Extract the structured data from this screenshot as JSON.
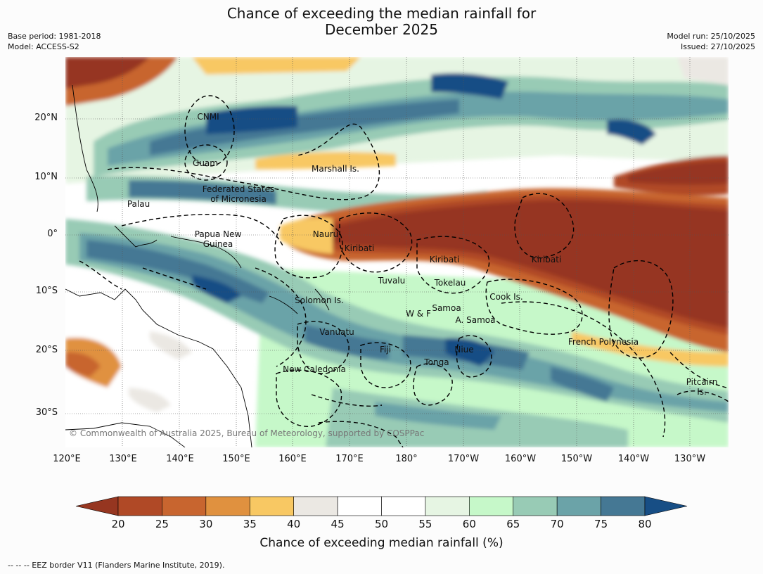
{
  "title_line1": "Chance of exceeding the median rainfall for",
  "title_line2": "December 2025",
  "base_period": "Base period: 1981-2018",
  "model": "Model: ACCESS-S2",
  "model_run": "Model run: 25/10/2025",
  "issued": "Issued: 27/10/2025",
  "lat_labels": [
    "20°N",
    "10°N",
    "0°",
    "10°S",
    "20°S",
    "30°S"
  ],
  "lon_labels": [
    "120°E",
    "130°E",
    "140°E",
    "150°E",
    "160°E",
    "170°E",
    "180°",
    "170°W",
    "160°W",
    "150°W",
    "140°W",
    "130°W"
  ],
  "regions": {
    "cnmi": "CNMI",
    "guam": "Guam",
    "marshall": "Marshall Is.",
    "fsm1": "Federated States",
    "fsm2": "of Micronesia",
    "palau": "Palau",
    "png1": "Papua New",
    "png2": "Guinea",
    "nauru": "Nauru",
    "kiribati1": "Kiribati",
    "kiribati2": "Kiribati",
    "kiribati3": "Kiribati",
    "tuvalu": "Tuvalu",
    "tokelau": "Tokelau",
    "cook": "Cook Is.",
    "solomon": "Solomon Is.",
    "samoa": "Samoa",
    "wf": "W & F",
    "asamoa": "A. Samoa",
    "vanuatu": "Vanuatu",
    "fiji": "Fiji",
    "niue": "Niue",
    "tonga": "Tonga",
    "newcal": "New Caledonia",
    "frenchpoly": "French Polynesia",
    "pitcairn1": "Pitcairn",
    "pitcairn2": "Is."
  },
  "copyright": "© Commonwealth of Australia 2025, Bureau of Meteorology, supported by COSPPac",
  "colorbar": {
    "ticks": [
      "20",
      "25",
      "30",
      "35",
      "40",
      "45",
      "50",
      "55",
      "60",
      "65",
      "70",
      "75",
      "80"
    ],
    "colors": [
      "#b04926",
      "#c8652f",
      "#e0913f",
      "#f8c863",
      "#ebe8e3",
      "#ffffff",
      "#ffffff",
      "#e6f5e3",
      "#c6f8c9",
      "#98cbb5",
      "#6ba3a8",
      "#457894"
    ],
    "under_color": "#963620",
    "over_color": "#174e85",
    "label": "Chance of exceeding median rainfall (%)"
  },
  "footnote": "-- -- -- EEZ border V11 (Flanders Marine Institute, 2019)."
}
